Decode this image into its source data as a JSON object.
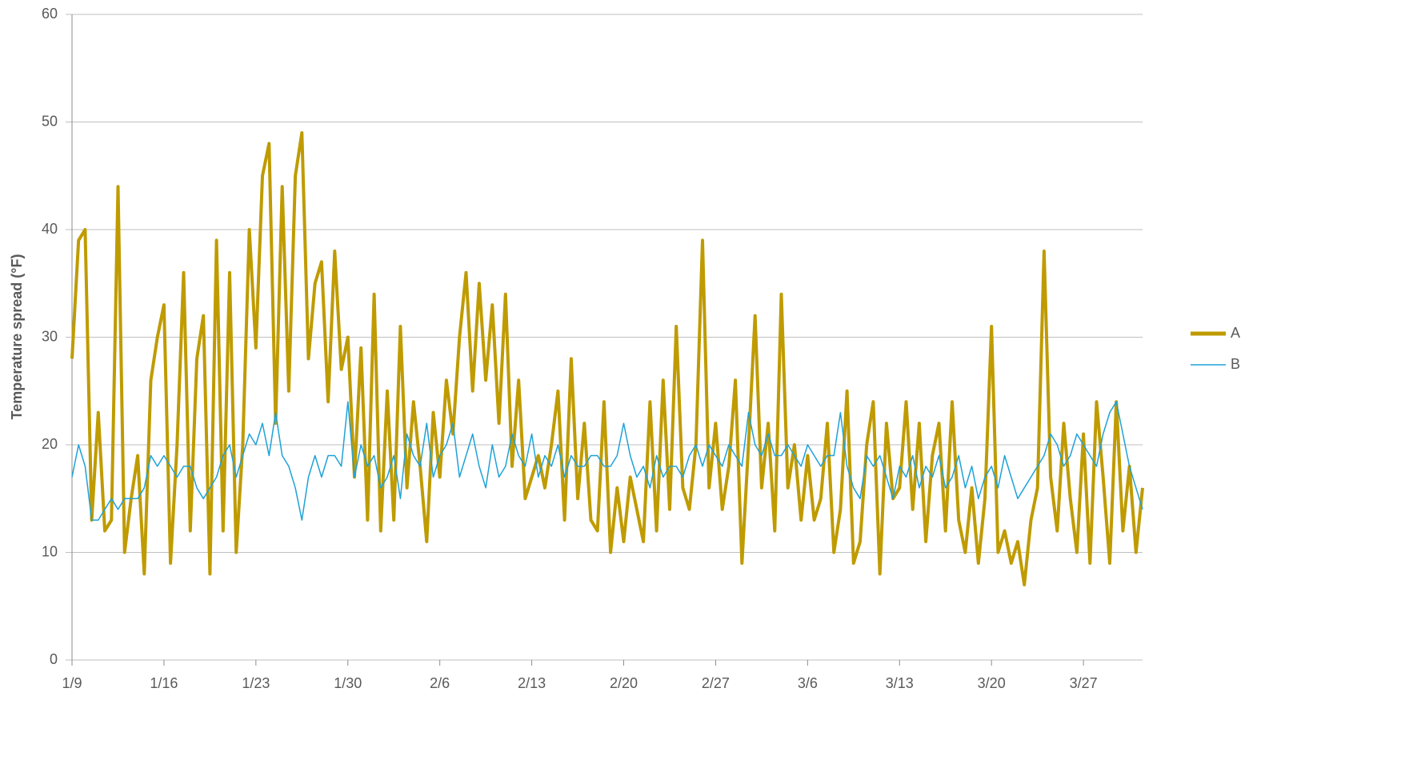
{
  "chart_data": {
    "type": "line",
    "y_label": "Temperature spread (°F)",
    "categories": [
      "1/9",
      null,
      null,
      null,
      null,
      null,
      null,
      null,
      null,
      null,
      null,
      null,
      null,
      null,
      "1/16",
      null,
      null,
      null,
      null,
      null,
      null,
      null,
      null,
      null,
      null,
      null,
      null,
      null,
      "1/23",
      null,
      null,
      null,
      null,
      null,
      null,
      null,
      null,
      null,
      null,
      null,
      null,
      null,
      "1/30",
      null,
      null,
      null,
      null,
      null,
      null,
      null,
      null,
      null,
      null,
      null,
      null,
      null,
      "2/6",
      null,
      null,
      null,
      null,
      null,
      null,
      null,
      null,
      null,
      null,
      null,
      null,
      null,
      "2/13",
      null,
      null,
      null,
      null,
      null,
      null,
      null,
      null,
      null,
      null,
      null,
      null,
      null,
      "2/20",
      null,
      null,
      null,
      null,
      null,
      null,
      null,
      null,
      null,
      null,
      null,
      null,
      null,
      "2/27",
      null,
      null,
      null,
      null,
      null,
      null,
      null,
      null,
      null,
      null,
      null,
      null,
      null,
      "3/6",
      null,
      null,
      null,
      null,
      null,
      null,
      null,
      null,
      null,
      null,
      null,
      null,
      null,
      "3/13",
      null,
      null,
      null,
      null,
      null,
      null,
      null,
      null,
      null,
      null,
      null,
      null,
      null,
      "3/20",
      null,
      null,
      null,
      null,
      null,
      null,
      null,
      null,
      null,
      null,
      null,
      null,
      null,
      "3/27",
      null,
      null,
      null,
      null,
      null,
      null,
      null,
      null,
      null
    ],
    "series": [
      {
        "name": "A",
        "color": "#bf9b00",
        "values": [
          28,
          39,
          40,
          13,
          23,
          12,
          13,
          44,
          10,
          15,
          19,
          8,
          26,
          30,
          33,
          9,
          20,
          36,
          12,
          28,
          32,
          8,
          39,
          12,
          36,
          10,
          20,
          40,
          29,
          45,
          48,
          22,
          44,
          25,
          45,
          49,
          28,
          35,
          37,
          24,
          38,
          27,
          30,
          17,
          29,
          13,
          34,
          12,
          25,
          13,
          31,
          16,
          24,
          18,
          11,
          23,
          17,
          26,
          21,
          30,
          36,
          25,
          35,
          26,
          33,
          22,
          34,
          18,
          26,
          15,
          17,
          19,
          16,
          20,
          25,
          13,
          28,
          15,
          22,
          13,
          12,
          24,
          10,
          16,
          11,
          17,
          14,
          11,
          24,
          12,
          26,
          14,
          31,
          16,
          14,
          20,
          39,
          16,
          22,
          14,
          18,
          26,
          9,
          20,
          32,
          16,
          22,
          12,
          34,
          16,
          20,
          13,
          19,
          13,
          15,
          22,
          10,
          14,
          25,
          9,
          11,
          20,
          24,
          8,
          22,
          15,
          16,
          24,
          14,
          22,
          11,
          19,
          22,
          12,
          24,
          13,
          10,
          16,
          9,
          15,
          31,
          10,
          12,
          9,
          11,
          7,
          13,
          16,
          38,
          17,
          12,
          22,
          15,
          10,
          21,
          9,
          24,
          17,
          9,
          24,
          12,
          18,
          10,
          16
        ]
      },
      {
        "name": "B",
        "color": "#1ea2d7",
        "values": [
          17,
          20,
          18,
          13,
          13,
          14,
          15,
          14,
          15,
          15,
          15,
          16,
          19,
          18,
          19,
          18,
          17,
          18,
          18,
          16,
          15,
          16,
          17,
          19,
          20,
          17,
          19,
          21,
          20,
          22,
          19,
          23,
          19,
          18,
          16,
          13,
          17,
          19,
          17,
          19,
          19,
          18,
          24,
          17,
          20,
          18,
          19,
          16,
          17,
          19,
          15,
          21,
          19,
          18,
          22,
          17,
          19,
          20,
          22,
          17,
          19,
          21,
          18,
          16,
          20,
          17,
          18,
          21,
          19,
          18,
          21,
          17,
          19,
          18,
          20,
          17,
          19,
          18,
          18,
          19,
          19,
          18,
          18,
          19,
          22,
          19,
          17,
          18,
          16,
          19,
          17,
          18,
          18,
          17,
          19,
          20,
          18,
          20,
          19,
          18,
          20,
          19,
          18,
          23,
          20,
          19,
          21,
          19,
          19,
          20,
          19,
          18,
          20,
          19,
          18,
          19,
          19,
          23,
          18,
          16,
          15,
          19,
          18,
          19,
          17,
          15,
          18,
          17,
          19,
          16,
          18,
          17,
          19,
          16,
          17,
          19,
          16,
          18,
          15,
          17,
          18,
          16,
          19,
          17,
          15,
          16,
          17,
          18,
          19,
          21,
          20,
          18,
          19,
          21,
          20,
          19,
          18,
          21,
          23,
          24,
          21,
          18,
          16,
          14
        ]
      }
    ],
    "ylim": [
      0,
      60
    ],
    "yticks": [
      0,
      10,
      20,
      30,
      40,
      50,
      60
    ],
    "grid": true,
    "legend": "right"
  }
}
